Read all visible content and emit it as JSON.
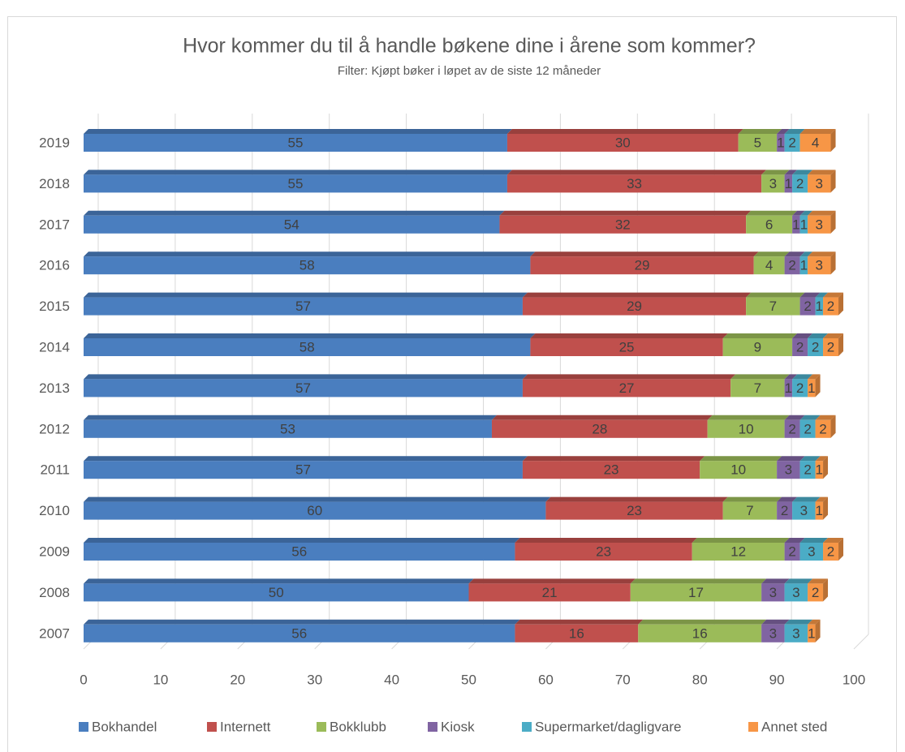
{
  "chart_data": {
    "type": "stacked-bar-horizontal",
    "title": "Hvor kommer du til å handle bøkene dine i årene som kommer?",
    "subtitle": "Filter: Kjøpt bøker i løpet av de siste 12 måneder",
    "categories": [
      "2019",
      "2018",
      "2017",
      "2016",
      "2015",
      "2014",
      "2013",
      "2012",
      "2011",
      "2010",
      "2009",
      "2008",
      "2007"
    ],
    "series": [
      {
        "name": "Bokhandel",
        "color": "#4a7ebf",
        "values": [
          55,
          55,
          54,
          58,
          57,
          58,
          57,
          53,
          57,
          60,
          56,
          50,
          56
        ]
      },
      {
        "name": "Internett",
        "color": "#c0504d",
        "values": [
          30,
          33,
          32,
          29,
          29,
          25,
          27,
          28,
          23,
          23,
          23,
          21,
          16
        ]
      },
      {
        "name": "Bokklubb",
        "color": "#9bbb59",
        "values": [
          5,
          3,
          6,
          4,
          7,
          9,
          7,
          10,
          10,
          7,
          12,
          17,
          16
        ]
      },
      {
        "name": "Kiosk",
        "color": "#8064a2",
        "values": [
          1,
          1,
          1,
          2,
          2,
          2,
          1,
          2,
          3,
          2,
          2,
          3,
          3
        ]
      },
      {
        "name": "Supermarket/dagligvare",
        "color": "#4bacc6",
        "values": [
          2,
          2,
          1,
          1,
          1,
          2,
          2,
          2,
          2,
          3,
          3,
          3,
          3
        ]
      },
      {
        "name": "Annet sted",
        "color": "#f79646",
        "values": [
          4,
          3,
          3,
          3,
          2,
          2,
          1,
          2,
          1,
          1,
          2,
          2,
          1
        ]
      }
    ],
    "xlim": [
      0,
      100
    ],
    "xticks": [
      0,
      10,
      20,
      30,
      40,
      50,
      60,
      70,
      80,
      90,
      100
    ],
    "grid": true,
    "legend": "bottom"
  }
}
